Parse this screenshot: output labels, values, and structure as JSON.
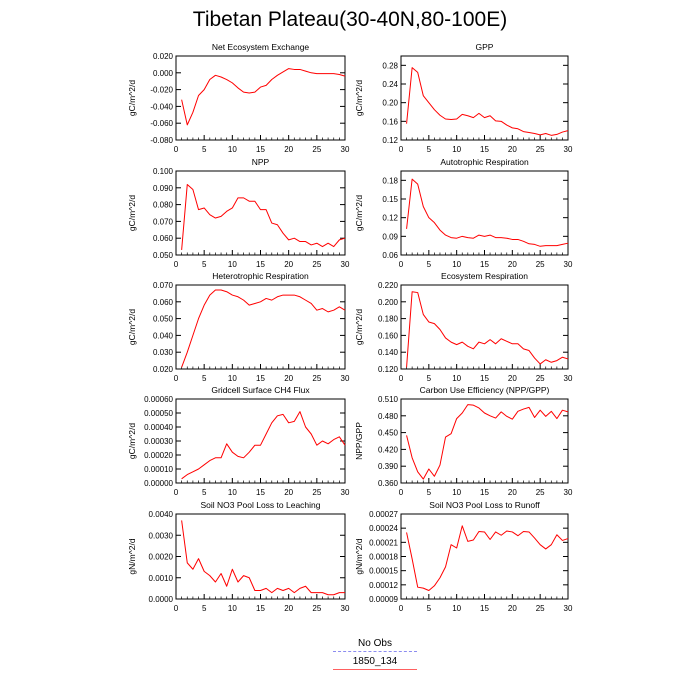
{
  "title": "Tibetan Plateau(30-40N,80-100E)",
  "legend": {
    "items": [
      {
        "label": "No Obs",
        "color": "#8c8cf0",
        "style": "dashed"
      },
      {
        "label": "1850_134",
        "color": "#ff6060",
        "style": "solid"
      }
    ]
  },
  "chart_data": [
    {
      "type": "line",
      "title": "Net Ecosystem Exchange",
      "ylabel": "gC/m^2/d",
      "xlabel": "",
      "xlim": [
        0,
        30
      ],
      "ylim": [
        -0.08,
        0.02
      ],
      "xticks": [
        0,
        5,
        10,
        15,
        20,
        25,
        30
      ],
      "yticks": [
        -0.08,
        -0.06,
        -0.04,
        -0.02,
        0.0,
        0.02
      ],
      "ytick_labels": [
        "-0.080",
        "-0.060",
        "-0.040",
        "-0.020",
        "0.000",
        "0.020"
      ],
      "series": [
        {
          "name": "1850_134",
          "color": "#ff0000",
          "x": [
            1,
            2,
            3,
            4,
            5,
            6,
            7,
            8,
            9,
            10,
            11,
            12,
            13,
            14,
            15,
            16,
            17,
            18,
            19,
            20,
            21,
            22,
            23,
            24,
            25,
            26,
            27,
            28,
            29,
            30
          ],
          "y": [
            -0.032,
            -0.062,
            -0.047,
            -0.027,
            -0.02,
            -0.008,
            -0.003,
            -0.005,
            -0.008,
            -0.012,
            -0.018,
            -0.023,
            -0.024,
            -0.023,
            -0.017,
            -0.015,
            -0.008,
            -0.003,
            0.001,
            0.005,
            0.004,
            0.004,
            0.002,
            0.0,
            -0.001,
            -0.001,
            -0.001,
            -0.001,
            -0.002,
            -0.004
          ]
        }
      ]
    },
    {
      "type": "line",
      "title": "GPP",
      "ylabel": "gC/m^2/d",
      "xlabel": "",
      "xlim": [
        0,
        30
      ],
      "ylim": [
        0.12,
        0.3
      ],
      "xticks": [
        0,
        5,
        10,
        15,
        20,
        25,
        30
      ],
      "yticks": [
        0.12,
        0.16,
        0.2,
        0.24,
        0.28
      ],
      "ytick_labels": [
        "0.12",
        "0.16",
        "0.20",
        "0.24",
        "0.28"
      ],
      "series": [
        {
          "name": "1850_134",
          "color": "#ff0000",
          "x": [
            1,
            2,
            3,
            4,
            5,
            6,
            7,
            8,
            9,
            10,
            11,
            12,
            13,
            14,
            15,
            16,
            17,
            18,
            19,
            20,
            21,
            22,
            23,
            24,
            25,
            26,
            27,
            28,
            29,
            30
          ],
          "y": [
            0.155,
            0.275,
            0.265,
            0.215,
            0.2,
            0.185,
            0.173,
            0.165,
            0.164,
            0.165,
            0.175,
            0.172,
            0.168,
            0.177,
            0.168,
            0.172,
            0.161,
            0.16,
            0.152,
            0.146,
            0.144,
            0.138,
            0.136,
            0.134,
            0.131,
            0.134,
            0.13,
            0.132,
            0.137,
            0.14
          ]
        }
      ]
    },
    {
      "type": "line",
      "title": "NPP",
      "ylabel": "gC/m^2/d",
      "xlabel": "",
      "xlim": [
        0,
        30
      ],
      "ylim": [
        0.05,
        0.1
      ],
      "xticks": [
        0,
        5,
        10,
        15,
        20,
        25,
        30
      ],
      "yticks": [
        0.05,
        0.06,
        0.07,
        0.08,
        0.09,
        0.1
      ],
      "ytick_labels": [
        "0.050",
        "0.060",
        "0.070",
        "0.080",
        "0.090",
        "0.100"
      ],
      "series": [
        {
          "name": "1850_134",
          "color": "#ff0000",
          "x": [
            1,
            2,
            3,
            4,
            5,
            6,
            7,
            8,
            9,
            10,
            11,
            12,
            13,
            14,
            15,
            16,
            17,
            18,
            19,
            20,
            21,
            22,
            23,
            24,
            25,
            26,
            27,
            28,
            29,
            30
          ],
          "y": [
            0.053,
            0.092,
            0.089,
            0.077,
            0.078,
            0.074,
            0.072,
            0.073,
            0.076,
            0.078,
            0.084,
            0.084,
            0.082,
            0.082,
            0.077,
            0.077,
            0.069,
            0.068,
            0.063,
            0.059,
            0.06,
            0.058,
            0.058,
            0.056,
            0.057,
            0.055,
            0.057,
            0.055,
            0.059,
            0.06
          ]
        }
      ]
    },
    {
      "type": "line",
      "title": "Autotrophic Respiration",
      "ylabel": "gC/m^2/d",
      "xlabel": "",
      "xlim": [
        0,
        30
      ],
      "ylim": [
        0.06,
        0.195
      ],
      "xticks": [
        0,
        5,
        10,
        15,
        20,
        25,
        30
      ],
      "yticks": [
        0.06,
        0.09,
        0.12,
        0.15,
        0.18
      ],
      "ytick_labels": [
        "0.06",
        "0.09",
        "0.12",
        "0.15",
        "0.18"
      ],
      "series": [
        {
          "name": "1850_134",
          "color": "#ff0000",
          "x": [
            1,
            2,
            3,
            4,
            5,
            6,
            7,
            8,
            9,
            10,
            11,
            12,
            13,
            14,
            15,
            16,
            17,
            18,
            19,
            20,
            21,
            22,
            23,
            24,
            25,
            26,
            27,
            28,
            29,
            30
          ],
          "y": [
            0.102,
            0.182,
            0.174,
            0.138,
            0.12,
            0.112,
            0.1,
            0.092,
            0.088,
            0.087,
            0.09,
            0.088,
            0.087,
            0.092,
            0.09,
            0.092,
            0.088,
            0.088,
            0.087,
            0.085,
            0.085,
            0.082,
            0.078,
            0.077,
            0.074,
            0.075,
            0.075,
            0.075,
            0.077,
            0.079
          ]
        }
      ]
    },
    {
      "type": "line",
      "title": "Heterotrophic Respiration",
      "ylabel": "gC/m^2/d",
      "xlabel": "",
      "xlim": [
        0,
        30
      ],
      "ylim": [
        0.02,
        0.07
      ],
      "xticks": [
        0,
        5,
        10,
        15,
        20,
        25,
        30
      ],
      "yticks": [
        0.02,
        0.03,
        0.04,
        0.05,
        0.06,
        0.07
      ],
      "ytick_labels": [
        "0.020",
        "0.030",
        "0.040",
        "0.050",
        "0.060",
        "0.070"
      ],
      "series": [
        {
          "name": "1850_134",
          "color": "#ff0000",
          "x": [
            1,
            2,
            3,
            4,
            5,
            6,
            7,
            8,
            9,
            10,
            11,
            12,
            13,
            14,
            15,
            16,
            17,
            18,
            19,
            20,
            21,
            22,
            23,
            24,
            25,
            26,
            27,
            28,
            29,
            30
          ],
          "y": [
            0.021,
            0.03,
            0.04,
            0.05,
            0.058,
            0.064,
            0.067,
            0.067,
            0.066,
            0.064,
            0.063,
            0.061,
            0.058,
            0.059,
            0.06,
            0.062,
            0.061,
            0.063,
            0.064,
            0.064,
            0.064,
            0.063,
            0.061,
            0.059,
            0.055,
            0.056,
            0.054,
            0.055,
            0.057,
            0.055
          ]
        }
      ]
    },
    {
      "type": "line",
      "title": "Ecosystem Respiration",
      "ylabel": "gC/m^2/d",
      "xlabel": "",
      "xlim": [
        0,
        30
      ],
      "ylim": [
        0.12,
        0.22
      ],
      "xticks": [
        0,
        5,
        10,
        15,
        20,
        25,
        30
      ],
      "yticks": [
        0.12,
        0.14,
        0.16,
        0.18,
        0.2,
        0.22
      ],
      "ytick_labels": [
        "0.120",
        "0.140",
        "0.160",
        "0.180",
        "0.200",
        "0.220"
      ],
      "series": [
        {
          "name": "1850_134",
          "color": "#ff0000",
          "x": [
            1,
            2,
            3,
            4,
            5,
            6,
            7,
            8,
            9,
            10,
            11,
            12,
            13,
            14,
            15,
            16,
            17,
            18,
            19,
            20,
            21,
            22,
            23,
            24,
            25,
            26,
            27,
            28,
            29,
            30
          ],
          "y": [
            0.122,
            0.212,
            0.211,
            0.185,
            0.176,
            0.174,
            0.167,
            0.157,
            0.152,
            0.149,
            0.152,
            0.147,
            0.144,
            0.152,
            0.15,
            0.155,
            0.15,
            0.156,
            0.153,
            0.15,
            0.15,
            0.144,
            0.142,
            0.133,
            0.126,
            0.131,
            0.128,
            0.13,
            0.134,
            0.132
          ]
        }
      ]
    },
    {
      "type": "line",
      "title": "Gridcell Surface CH4 Flux",
      "ylabel": "gC/m^2/d",
      "xlabel": "",
      "xlim": [
        0,
        30
      ],
      "ylim": [
        0.0,
        0.0006
      ],
      "xticks": [
        0,
        5,
        10,
        15,
        20,
        25,
        30
      ],
      "yticks": [
        0.0,
        0.0001,
        0.0002,
        0.0003,
        0.0004,
        0.0005,
        0.0006
      ],
      "ytick_labels": [
        "0.00000",
        "0.00010",
        "0.00020",
        "0.00030",
        "0.00040",
        "0.00050",
        "0.00060"
      ],
      "series": [
        {
          "name": "1850_134",
          "color": "#ff0000",
          "x": [
            1,
            2,
            3,
            4,
            5,
            6,
            7,
            8,
            9,
            10,
            11,
            12,
            13,
            14,
            15,
            16,
            17,
            18,
            19,
            20,
            21,
            22,
            23,
            24,
            25,
            26,
            27,
            28,
            29,
            30
          ],
          "y": [
            3e-05,
            6e-05,
            8e-05,
            0.0001,
            0.00013,
            0.00016,
            0.00018,
            0.00018,
            0.00028,
            0.00022,
            0.00019,
            0.00018,
            0.00022,
            0.00027,
            0.00027,
            0.00035,
            0.00043,
            0.00048,
            0.00049,
            0.00043,
            0.00044,
            0.00051,
            0.0004,
            0.00035,
            0.00027,
            0.0003,
            0.00028,
            0.00031,
            0.00033,
            0.00027
          ]
        }
      ]
    },
    {
      "type": "line",
      "title": "Carbon Use Efficiency (NPP/GPP)",
      "ylabel": "NPP/GPP",
      "xlabel": "",
      "xlim": [
        0,
        30
      ],
      "ylim": [
        0.36,
        0.51
      ],
      "xticks": [
        0,
        5,
        10,
        15,
        20,
        25,
        30
      ],
      "yticks": [
        0.36,
        0.39,
        0.42,
        0.45,
        0.48,
        0.51
      ],
      "ytick_labels": [
        "0.360",
        "0.390",
        "0.420",
        "0.450",
        "0.480",
        "0.510"
      ],
      "series": [
        {
          "name": "1850_134",
          "color": "#ff0000",
          "x": [
            1,
            2,
            3,
            4,
            5,
            6,
            7,
            8,
            9,
            10,
            11,
            12,
            13,
            14,
            15,
            16,
            17,
            18,
            19,
            20,
            21,
            22,
            23,
            24,
            25,
            26,
            27,
            28,
            29,
            30
          ],
          "y": [
            0.445,
            0.405,
            0.38,
            0.367,
            0.385,
            0.372,
            0.392,
            0.442,
            0.448,
            0.475,
            0.485,
            0.5,
            0.499,
            0.494,
            0.485,
            0.48,
            0.476,
            0.487,
            0.479,
            0.474,
            0.488,
            0.492,
            0.495,
            0.477,
            0.49,
            0.479,
            0.488,
            0.475,
            0.49,
            0.487
          ]
        }
      ]
    },
    {
      "type": "line",
      "title": "Soil NO3 Pool Loss to Leaching",
      "ylabel": "gN/m^2/d",
      "xlabel": "",
      "xlim": [
        0,
        30
      ],
      "ylim": [
        0.0,
        0.004
      ],
      "xticks": [
        0,
        5,
        10,
        15,
        20,
        25,
        30
      ],
      "yticks": [
        0.0,
        0.001,
        0.002,
        0.003,
        0.004
      ],
      "ytick_labels": [
        "0.0000",
        "0.0010",
        "0.0020",
        "0.0030",
        "0.0040"
      ],
      "series": [
        {
          "name": "1850_134",
          "color": "#ff0000",
          "x": [
            1,
            2,
            3,
            4,
            5,
            6,
            7,
            8,
            9,
            10,
            11,
            12,
            13,
            14,
            15,
            16,
            17,
            18,
            19,
            20,
            21,
            22,
            23,
            24,
            25,
            26,
            27,
            28,
            29,
            30
          ],
          "y": [
            0.0037,
            0.0017,
            0.0014,
            0.0019,
            0.0013,
            0.0011,
            0.0008,
            0.0012,
            0.0006,
            0.0014,
            0.0008,
            0.0011,
            0.001,
            0.0004,
            0.0004,
            0.0005,
            0.0003,
            0.0005,
            0.0004,
            0.0005,
            0.0003,
            0.0005,
            0.0006,
            0.0003,
            0.0003,
            0.0003,
            0.0002,
            0.0002,
            0.0003,
            0.0003
          ]
        }
      ]
    },
    {
      "type": "line",
      "title": "Soil NO3 Pool Loss to Runoff",
      "ylabel": "gN/m^2/d",
      "xlabel": "",
      "xlim": [
        0,
        30
      ],
      "ylim": [
        9e-05,
        0.00027
      ],
      "xticks": [
        0,
        5,
        10,
        15,
        20,
        25,
        30
      ],
      "yticks": [
        9e-05,
        0.00012,
        0.00015,
        0.00018,
        0.00021,
        0.00024,
        0.00027
      ],
      "ytick_labels": [
        "0.00009",
        "0.00012",
        "0.00015",
        "0.00018",
        "0.00021",
        "0.00024",
        "0.00027"
      ],
      "series": [
        {
          "name": "1850_134",
          "color": "#ff0000",
          "x": [
            1,
            2,
            3,
            4,
            5,
            6,
            7,
            8,
            9,
            10,
            11,
            12,
            13,
            14,
            15,
            16,
            17,
            18,
            19,
            20,
            21,
            22,
            23,
            24,
            25,
            26,
            27,
            28,
            29,
            30
          ],
          "y": [
            0.000231,
            0.000175,
            0.000115,
            0.000113,
            0.000108,
            0.000118,
            0.000135,
            0.000158,
            0.000205,
            0.000198,
            0.000245,
            0.000212,
            0.000215,
            0.000233,
            0.000232,
            0.000216,
            0.000232,
            0.000225,
            0.000234,
            0.000232,
            0.000224,
            0.000233,
            0.000232,
            0.000219,
            0.000205,
            0.000196,
            0.000205,
            0.000226,
            0.000214,
            0.000218
          ]
        }
      ]
    }
  ]
}
